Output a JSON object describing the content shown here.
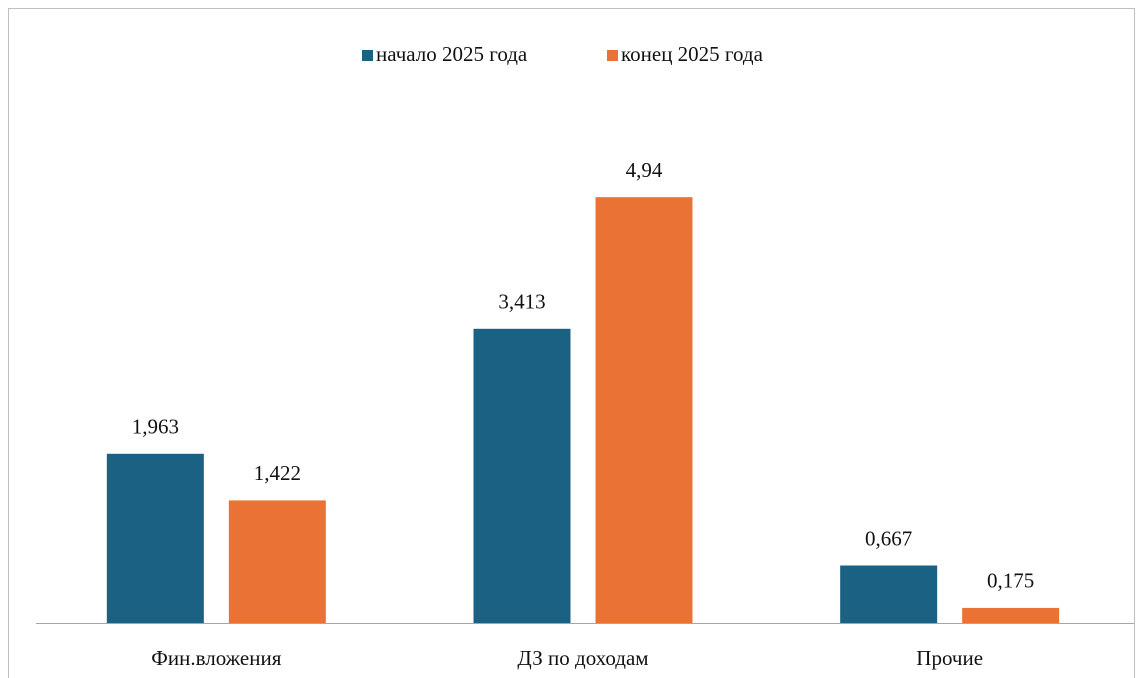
{
  "chart_data": {
    "type": "bar",
    "categories": [
      "Фин.вложения",
      "ДЗ по доходам",
      "Прочие"
    ],
    "series": [
      {
        "name": "начало 2025 года",
        "color": "#1b6184",
        "values": [
          1.963,
          3.413,
          0.667
        ],
        "value_labels": [
          "1,963",
          "3,413",
          "0,667"
        ]
      },
      {
        "name": "конец 2025 года",
        "color": "#e97234",
        "values": [
          1.422,
          4.94,
          0.175
        ],
        "value_labels": [
          "1,422",
          "4,94",
          "0,175"
        ]
      }
    ],
    "legend": "top"
  }
}
